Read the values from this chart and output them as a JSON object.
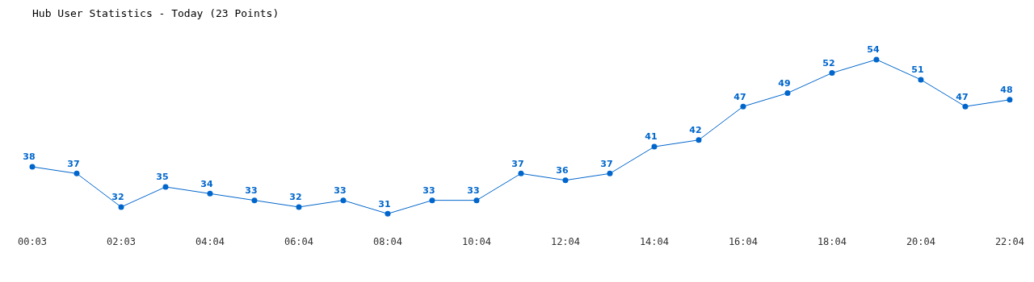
{
  "chart_data": {
    "type": "line",
    "title": "Hub User Statistics - Today (23 Points)",
    "categories": [
      "00:03",
      null,
      "02:03",
      null,
      "04:04",
      null,
      "06:04",
      null,
      "08:04",
      null,
      "10:04",
      null,
      "12:04",
      null,
      "14:04",
      null,
      "16:04",
      null,
      "18:04",
      null,
      "20:04",
      null,
      "22:04"
    ],
    "series": [
      {
        "color": "#0066cc",
        "values": [
          38,
          37,
          32,
          35,
          34,
          33,
          32,
          33,
          31,
          33,
          33,
          37,
          36,
          37,
          41,
          42,
          47,
          49,
          52,
          54,
          51,
          47,
          48
        ]
      }
    ],
    "data_labels": true,
    "marker": "circle",
    "line_style": "solid",
    "grid": false,
    "legend": false,
    "tick_labels": "x"
  }
}
